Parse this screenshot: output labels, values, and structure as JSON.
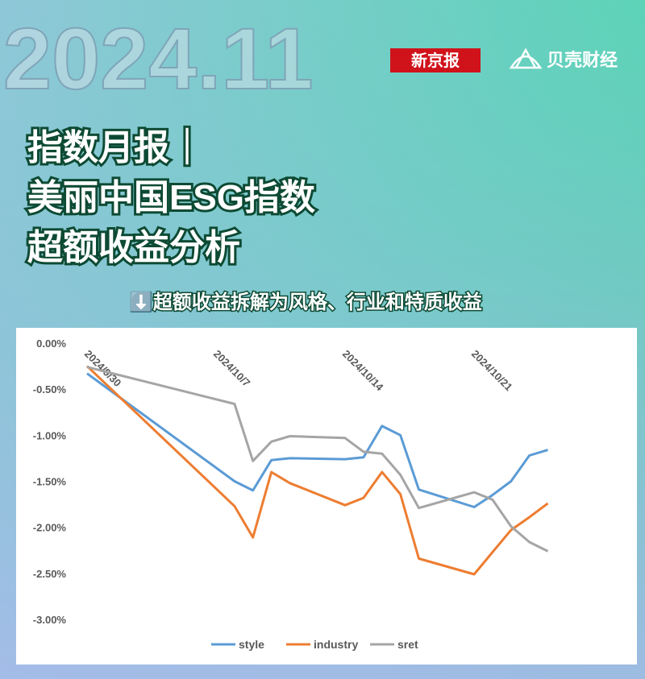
{
  "header": {
    "big_date": "2024.11",
    "brand1": "新京报",
    "brand2": "贝壳财经",
    "title_lines": [
      "指数月报｜",
      "美丽中国ESG指数",
      "超额收益分析"
    ],
    "subtitle": "⬇️超额收益拆解为风格、行业和特质收益"
  },
  "chart_data": {
    "type": "line",
    "x": [
      "2024/9/30",
      "2024/10/8",
      "2024/10/9",
      "2024/10/10",
      "2024/10/11",
      "2024/10/14",
      "2024/10/15",
      "2024/10/16",
      "2024/10/17",
      "2024/10/18",
      "2024/10/21",
      "2024/10/22",
      "2024/10/23",
      "2024/10/24",
      "2024/10/25"
    ],
    "xticks": [
      "2024/9/30",
      "2024/10/7",
      "2024/10/14",
      "2024/10/21"
    ],
    "series": [
      {
        "name": "style",
        "color": "#5b9bd5",
        "values": [
          -0.33,
          -1.5,
          -1.6,
          -1.27,
          -1.25,
          -1.26,
          -1.24,
          -0.9,
          -1.0,
          -1.59,
          -1.78,
          -1.65,
          -1.5,
          -1.22,
          -1.16
        ]
      },
      {
        "name": "industry",
        "color": "#ed7d31",
        "values": [
          -0.25,
          -1.77,
          -2.11,
          -1.4,
          -1.52,
          -1.76,
          -1.68,
          -1.4,
          -1.64,
          -2.34,
          -2.51,
          -2.27,
          -2.03,
          -1.89,
          -1.74
        ]
      },
      {
        "name": "sret",
        "color": "#a5a5a5",
        "values": [
          -0.26,
          -0.66,
          -1.28,
          -1.07,
          -1.01,
          -1.03,
          -1.18,
          -1.2,
          -1.43,
          -1.79,
          -1.62,
          -1.7,
          -1.99,
          -2.16,
          -2.26
        ]
      }
    ],
    "ylim": [
      -3,
      0
    ],
    "yticks": [
      {
        "value": 0,
        "label": "0.00%"
      },
      {
        "value": -0.5,
        "label": "-0.50%"
      },
      {
        "value": -1,
        "label": "-1.00%"
      },
      {
        "value": -1.5,
        "label": "-1.50%"
      },
      {
        "value": -2,
        "label": "-2.00%"
      },
      {
        "value": -2.5,
        "label": "-2.50%"
      },
      {
        "value": -3,
        "label": "-3.00%"
      }
    ],
    "legend": "bottom"
  }
}
